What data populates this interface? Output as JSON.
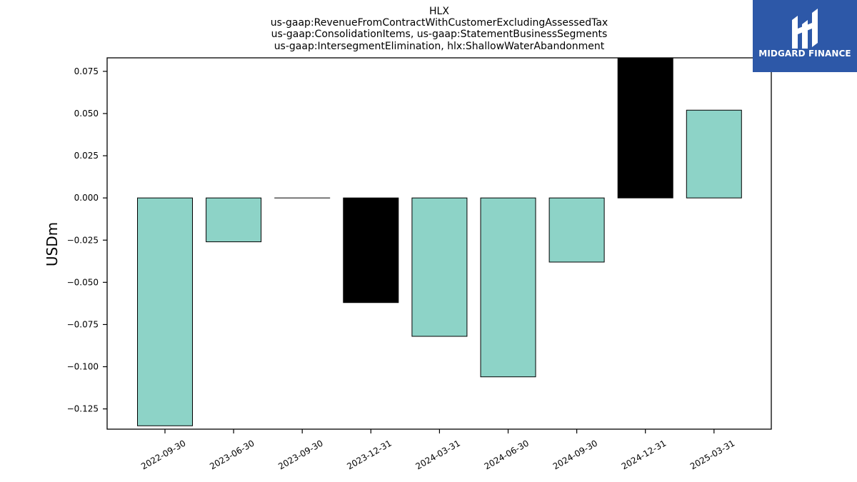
{
  "chart_data": {
    "type": "bar",
    "title_lines": [
      "HLX",
      "us-gaap:RevenueFromContractWithCustomerExcludingAssessedTax",
      "us-gaap:ConsolidationItems, us-gaap:StatementBusinessSegments",
      "us-gaap:IntersegmentElimination, hlx:ShallowWaterAbandonment"
    ],
    "xlabel": "",
    "ylabel": "USDm",
    "categories": [
      "2022-09-30",
      "2023-06-30",
      "2023-09-30",
      "2023-12-31",
      "2024-03-31",
      "2024-06-30",
      "2024-09-30",
      "2024-12-31",
      "2025-03-31"
    ],
    "values": [
      -0.135,
      -0.026,
      0.0,
      -0.062,
      -0.082,
      -0.106,
      -0.038,
      0.085,
      0.052
    ],
    "bar_colors": [
      "#8dd3c7",
      "#8dd3c7",
      "#8dd3c7",
      "#000000",
      "#8dd3c7",
      "#8dd3c7",
      "#8dd3c7",
      "#000000",
      "#8dd3c7"
    ],
    "ylim": [
      -0.137,
      0.083
    ],
    "yticks": [
      0.075,
      0.05,
      0.025,
      0.0,
      -0.025,
      -0.05,
      -0.075,
      -0.1,
      -0.125
    ],
    "ytick_labels": [
      "0.075",
      "0.050",
      "0.025",
      "0.000",
      "−0.025",
      "−0.050",
      "−0.075",
      "−0.100",
      "−0.125"
    ],
    "grid": false,
    "legend": "none"
  },
  "logo": {
    "text": "MIDGARD FINANCE",
    "background": "#2d58a8",
    "icon": "midgard-logo-icon"
  }
}
